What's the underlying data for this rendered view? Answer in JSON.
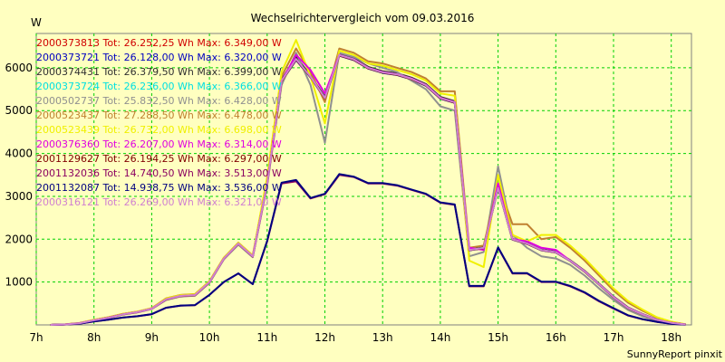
{
  "chart_data": {
    "type": "line",
    "title": "Wechselrichtervergleich vom 09.03.2016",
    "ylabel": "W",
    "footer": "SunnyReport pinxit",
    "ylim": [
      0,
      6800
    ],
    "xlim": [
      7.0,
      18.35
    ],
    "yticks": [
      1000,
      2000,
      3000,
      4000,
      5000,
      6000
    ],
    "xticks": [
      7,
      8,
      9,
      10,
      11,
      12,
      13,
      14,
      15,
      16,
      17,
      18
    ],
    "xtick_labels": [
      "7h",
      "8h",
      "9h",
      "10h",
      "11h",
      "12h",
      "13h",
      "14h",
      "15h",
      "16h",
      "17h",
      "18h"
    ],
    "grid": true,
    "legend_position": "top-left",
    "x": [
      7.25,
      7.5,
      7.75,
      8.0,
      8.25,
      8.5,
      8.75,
      9.0,
      9.25,
      9.5,
      9.75,
      10.0,
      10.25,
      10.5,
      10.75,
      11.0,
      11.25,
      11.5,
      11.75,
      12.0,
      12.25,
      12.5,
      12.75,
      13.0,
      13.25,
      13.5,
      13.75,
      14.0,
      14.25,
      14.5,
      14.75,
      15.0,
      15.25,
      15.5,
      15.75,
      16.0,
      16.25,
      16.5,
      16.75,
      17.0,
      17.25,
      17.5,
      17.75,
      18.0,
      18.25
    ],
    "series": [
      {
        "name": "2000373813",
        "total": "26.252,25",
        "max": "6.349,00",
        "color": "#d00000",
        "values": [
          0,
          10,
          40,
          110,
          170,
          250,
          300,
          380,
          600,
          680,
          700,
          1000,
          1550,
          1900,
          1600,
          3300,
          5700,
          6200,
          5800,
          5300,
          6300,
          6200,
          6000,
          5900,
          5850,
          5750,
          5600,
          5300,
          5200,
          1750,
          1800,
          3200,
          2000,
          1900,
          1750,
          1700,
          1500,
          1250,
          950,
          650,
          400,
          250,
          120,
          50,
          10
        ]
      },
      {
        "name": "2000373721",
        "total": "26.128,00",
        "max": "6.320,00",
        "color": "#0000c0",
        "values": [
          0,
          10,
          40,
          105,
          165,
          245,
          295,
          375,
          590,
          670,
          690,
          990,
          1540,
          1880,
          1590,
          3280,
          5680,
          6180,
          5780,
          5280,
          6280,
          6180,
          5980,
          5880,
          5830,
          5730,
          5580,
          5280,
          5180,
          1740,
          1790,
          3190,
          1990,
          1890,
          1740,
          1690,
          1490,
          1240,
          940,
          640,
          390,
          240,
          115,
          45,
          10
        ]
      },
      {
        "name": "2000374431",
        "total": "26.379,50",
        "max": "6.399,00",
        "color": "#303030",
        "values": [
          0,
          10,
          42,
          112,
          172,
          252,
          302,
          382,
          602,
          682,
          702,
          1002,
          1552,
          1902,
          1602,
          3320,
          5720,
          6250,
          5820,
          5320,
          6320,
          6220,
          6020,
          5920,
          5870,
          5770,
          5620,
          5320,
          5220,
          1760,
          1810,
          3210,
          2010,
          1910,
          1760,
          1710,
          1510,
          1260,
          960,
          660,
          410,
          255,
          125,
          50,
          10
        ]
      },
      {
        "name": "2000373724",
        "total": "26.236,00",
        "max": "6.366,00",
        "color": "#00e0e0",
        "values": [
          0,
          10,
          40,
          108,
          168,
          248,
          298,
          378,
          598,
          678,
          698,
          998,
          1548,
          1898,
          1598,
          3290,
          5690,
          6200,
          5790,
          5290,
          6290,
          6190,
          5990,
          5890,
          5840,
          5740,
          5590,
          5290,
          5190,
          1745,
          1795,
          3195,
          1995,
          1895,
          1745,
          1695,
          1495,
          1245,
          945,
          645,
          395,
          245,
          118,
          48,
          10
        ]
      },
      {
        "name": "2000502737",
        "total": "25.832,50",
        "max": "6.428,00",
        "color": "#909090",
        "values": [
          0,
          10,
          38,
          100,
          160,
          240,
          290,
          370,
          580,
          660,
          680,
          980,
          1530,
          1870,
          1580,
          3250,
          5600,
          6350,
          5600,
          4250,
          6350,
          6250,
          6100,
          6000,
          5900,
          5700,
          5500,
          5100,
          5000,
          1600,
          1700,
          3700,
          2100,
          1800,
          1600,
          1550,
          1400,
          1150,
          850,
          580,
          350,
          200,
          100,
          40,
          10
        ]
      },
      {
        "name": "2000523437",
        "total": "27.288,50",
        "max": "6.478,00",
        "color": "#c08030",
        "values": [
          0,
          12,
          45,
          120,
          180,
          260,
          310,
          390,
          620,
          700,
          720,
          1020,
          1570,
          1920,
          1620,
          3400,
          5800,
          6450,
          5900,
          5200,
          6450,
          6350,
          6150,
          6100,
          6000,
          5900,
          5750,
          5450,
          5450,
          1800,
          1850,
          3300,
          2350,
          2350,
          2000,
          2050,
          1800,
          1500,
          1150,
          800,
          520,
          330,
          170,
          70,
          15
        ]
      },
      {
        "name": "2000523439",
        "total": "26.732,00",
        "max": "6.698,00",
        "color": "#f0f000",
        "values": [
          0,
          12,
          44,
          118,
          178,
          258,
          308,
          388,
          615,
          695,
          715,
          1015,
          1565,
          1915,
          1615,
          3450,
          5900,
          6650,
          5800,
          4700,
          6400,
          6300,
          6100,
          6050,
          5950,
          5850,
          5700,
          5400,
          5350,
          1500,
          1350,
          3500,
          2100,
          1950,
          2100,
          2100,
          1850,
          1550,
          1200,
          850,
          560,
          360,
          180,
          75,
          15
        ]
      },
      {
        "name": "2000376360",
        "total": "26.207,00",
        "max": "6.314,00",
        "color": "#e000e0",
        "values": [
          0,
          10,
          40,
          108,
          168,
          248,
          298,
          378,
          595,
          675,
          695,
          995,
          1545,
          1895,
          1595,
          3290,
          5690,
          6300,
          5950,
          5400,
          6300,
          6200,
          6000,
          5900,
          5850,
          5750,
          5600,
          5300,
          5200,
          1800,
          1750,
          3300,
          2000,
          1950,
          1800,
          1750,
          1500,
          1250,
          950,
          650,
          400,
          250,
          120,
          50,
          10
        ]
      },
      {
        "name": "2001129627",
        "total": "26.194,25",
        "max": "6.297,00",
        "color": "#800000",
        "values": [
          0,
          10,
          40,
          106,
          166,
          246,
          296,
          376,
          592,
          672,
          692,
          992,
          1542,
          1892,
          1592,
          3285,
          5685,
          6190,
          5785,
          5285,
          6285,
          6185,
          5985,
          5885,
          5835,
          5735,
          5585,
          5285,
          5185,
          1742,
          1792,
          3192,
          1992,
          1892,
          1742,
          1692,
          1492,
          1242,
          942,
          642,
          392,
          242,
          116,
          46,
          10
        ]
      },
      {
        "name": "2001132036",
        "total": "14.740,50",
        "max": "3.513,00",
        "color": "#8b0060",
        "values": [
          0,
          8,
          30,
          80,
          120,
          170,
          200,
          250,
          400,
          450,
          460,
          700,
          1000,
          1200,
          950,
          1950,
          3300,
          3350,
          2950,
          3050,
          3500,
          3450,
          3300,
          3300,
          3250,
          3150,
          3050,
          2850,
          2800,
          900,
          900,
          1800,
          1200,
          1200,
          1000,
          1000,
          900,
          750,
          550,
          380,
          220,
          130,
          70,
          25,
          5
        ]
      },
      {
        "name": "2001132087",
        "total": "14.938,75",
        "max": "3.536,00",
        "color": "#000080",
        "values": [
          0,
          8,
          30,
          82,
          122,
          172,
          202,
          252,
          402,
          452,
          462,
          702,
          1002,
          1202,
          952,
          1960,
          3320,
          3380,
          2960,
          3060,
          3520,
          3460,
          3310,
          3310,
          3260,
          3160,
          3060,
          2860,
          2810,
          910,
          910,
          1810,
          1210,
          1210,
          1010,
          1010,
          910,
          760,
          560,
          390,
          225,
          135,
          72,
          26,
          5
        ]
      },
      {
        "name": "2000316121",
        "total": "26.269,00",
        "max": "6.321,00",
        "color": "#d080d0",
        "values": [
          0,
          10,
          40,
          107,
          167,
          247,
          297,
          377,
          596,
          676,
          696,
          996,
          1546,
          1896,
          1596,
          3295,
          5695,
          6205,
          5795,
          5295,
          6295,
          6195,
          5995,
          5895,
          5845,
          5745,
          5595,
          5295,
          5195,
          1748,
          1798,
          3198,
          1998,
          1898,
          1748,
          1698,
          1498,
          1248,
          948,
          648,
          398,
          248,
          119,
          49,
          10
        ]
      }
    ]
  },
  "legend_labels": {
    "tot": "Tot:",
    "wh_max": "Wh Max:",
    "unit": "W"
  }
}
